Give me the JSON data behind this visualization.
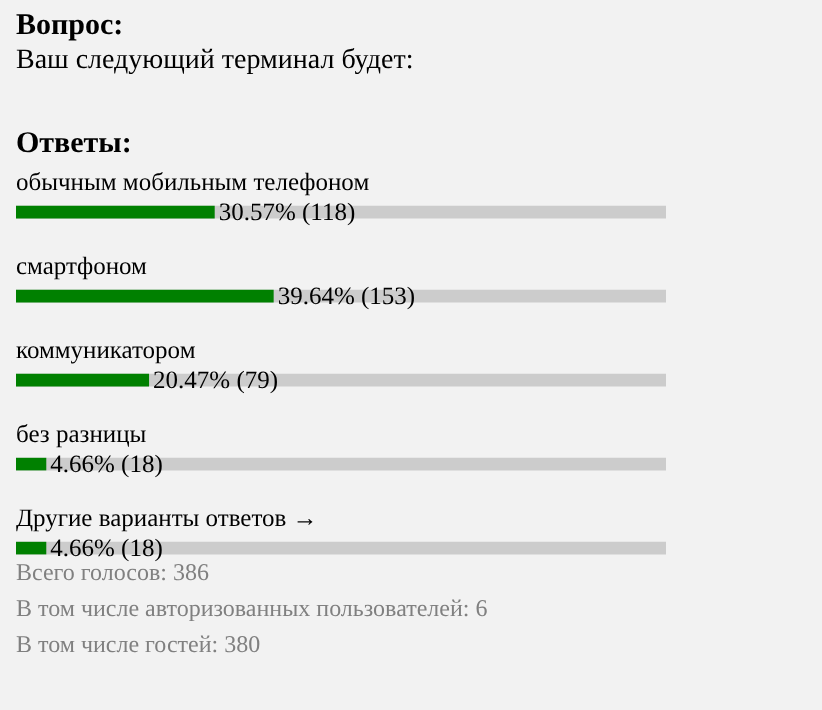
{
  "chart_data": {
    "type": "bar",
    "orientation": "horizontal",
    "title": "Вопрос:",
    "subtitle": "Ваш следующий терминал будет:",
    "categories": [
      "обычным мобильным телефоном",
      "смартфоном",
      "коммуникатором",
      "без разницы",
      "Другие варианты ответов →"
    ],
    "values": [
      30.57,
      39.64,
      20.47,
      4.66,
      4.66
    ],
    "value_labels": [
      "30.57% (118)",
      "39.64% (153)",
      "20.47% (79)",
      "4.66% (18)",
      "4.66% (18)"
    ],
    "color": "#008000",
    "xlim": [
      0,
      100
    ],
    "tick_labels": false,
    "annotations": [
      "Ответы:",
      "Всего голосов: 386",
      "В том числе авторизованных пользователей: 6",
      "В том числе гостей: 380"
    ]
  }
}
